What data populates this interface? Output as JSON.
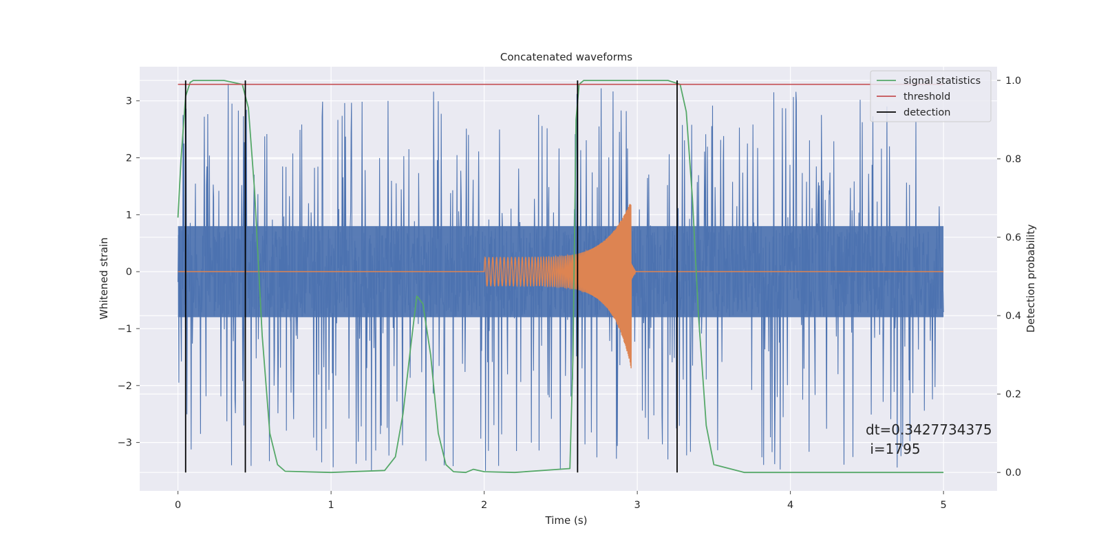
{
  "chart_data": {
    "type": "line",
    "title": "Concatenated waveforms",
    "xlabel": "Time (s)",
    "ylabel": "Whitened strain",
    "y2label": "Detection probability",
    "xlim": [
      -0.25,
      5.35
    ],
    "ylim": [
      -3.85,
      3.6
    ],
    "y2lim": [
      -0.047,
      1.035
    ],
    "x_ticks": [
      0,
      1,
      2,
      3,
      4,
      5
    ],
    "y_ticks": [
      -3,
      -2,
      -1,
      0,
      1,
      2,
      3
    ],
    "y2_ticks": [
      0.0,
      0.2,
      0.4,
      0.6,
      0.8,
      1.0
    ],
    "grid": true,
    "legend_position": "top-right",
    "series": [
      {
        "name": "",
        "axis": "left",
        "color": "#4c72b0",
        "style": "noise",
        "x_range": [
          0,
          5
        ],
        "core_amplitude": 0.8,
        "spike_peak": 3.3,
        "spike_trough": -3.5
      },
      {
        "name": "",
        "axis": "left",
        "color": "#dd8452",
        "style": "chirp",
        "x_range": [
          0,
          5
        ],
        "chirp_start": 2.0,
        "chirp_end": 2.96,
        "start_amplitude": 0.25,
        "peak_amplitude": 1.25,
        "peak_trough": -1.7
      },
      {
        "name": "signal statistics",
        "axis": "right",
        "color": "#55a868",
        "x": [
          0,
          0.02,
          0.05,
          0.08,
          0.1,
          0.15,
          0.3,
          0.42,
          0.46,
          0.5,
          0.55,
          0.6,
          0.65,
          0.7,
          1.0,
          1.35,
          1.42,
          1.47,
          1.52,
          1.56,
          1.6,
          1.65,
          1.7,
          1.75,
          1.8,
          1.88,
          1.93,
          2.0,
          2.2,
          2.56,
          2.58,
          2.6,
          2.62,
          2.65,
          2.8,
          3.0,
          3.2,
          3.28,
          3.32,
          3.36,
          3.4,
          3.45,
          3.5,
          3.7,
          4.0,
          5.0
        ],
        "y": [
          0.65,
          0.8,
          0.96,
          0.995,
          1.0,
          1.0,
          1.0,
          0.99,
          0.93,
          0.72,
          0.35,
          0.1,
          0.02,
          0.003,
          0.0,
          0.005,
          0.04,
          0.15,
          0.32,
          0.45,
          0.43,
          0.3,
          0.1,
          0.02,
          0.002,
          0.0,
          0.008,
          0.002,
          0.0,
          0.01,
          0.3,
          0.9,
          0.99,
          1.0,
          1.0,
          1.0,
          1.0,
          0.99,
          0.92,
          0.7,
          0.4,
          0.12,
          0.02,
          0.0,
          0.0,
          0.0
        ]
      },
      {
        "name": "threshold",
        "axis": "right",
        "color": "#c44e52",
        "x": [
          0,
          5
        ],
        "y": [
          0.99,
          0.99
        ]
      },
      {
        "name": "detection",
        "axis": "right",
        "color": "#000000",
        "type": "vlines",
        "x": [
          0.05,
          0.44,
          2.61,
          3.26
        ],
        "y_range": [
          0.0,
          1.0
        ]
      }
    ],
    "annotations": [
      "dt=0.3427734375",
      " i=1795"
    ]
  }
}
